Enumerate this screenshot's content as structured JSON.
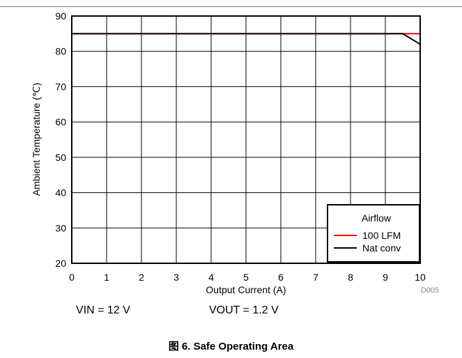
{
  "chart_data": {
    "type": "line",
    "xlabel": "Output Current (A)",
    "ylabel": "Ambient Temperature (℃)",
    "xlim": [
      0,
      10
    ],
    "ylim": [
      20,
      90
    ],
    "xticks": [
      "0",
      "1",
      "2",
      "3",
      "4",
      "5",
      "6",
      "7",
      "8",
      "9",
      "10"
    ],
    "yticks": [
      "20",
      "30",
      "40",
      "50",
      "60",
      "70",
      "80",
      "90"
    ],
    "grid": true,
    "legend": {
      "title": "Airflow",
      "placement": "bottom-right"
    },
    "series": [
      {
        "name": "100 LFM",
        "color": "#ff0000",
        "points": [
          [
            0,
            85
          ],
          [
            10,
            85
          ]
        ]
      },
      {
        "name": "Nat conv",
        "color": "#000000",
        "points": [
          [
            0,
            85
          ],
          [
            9.5,
            85
          ],
          [
            10,
            82
          ]
        ]
      }
    ],
    "code": "D005"
  },
  "conditions": {
    "vin": "VIN = 12 V",
    "vout": "VOUT = 1.2 V"
  },
  "caption": "图 6. Safe Operating Area"
}
